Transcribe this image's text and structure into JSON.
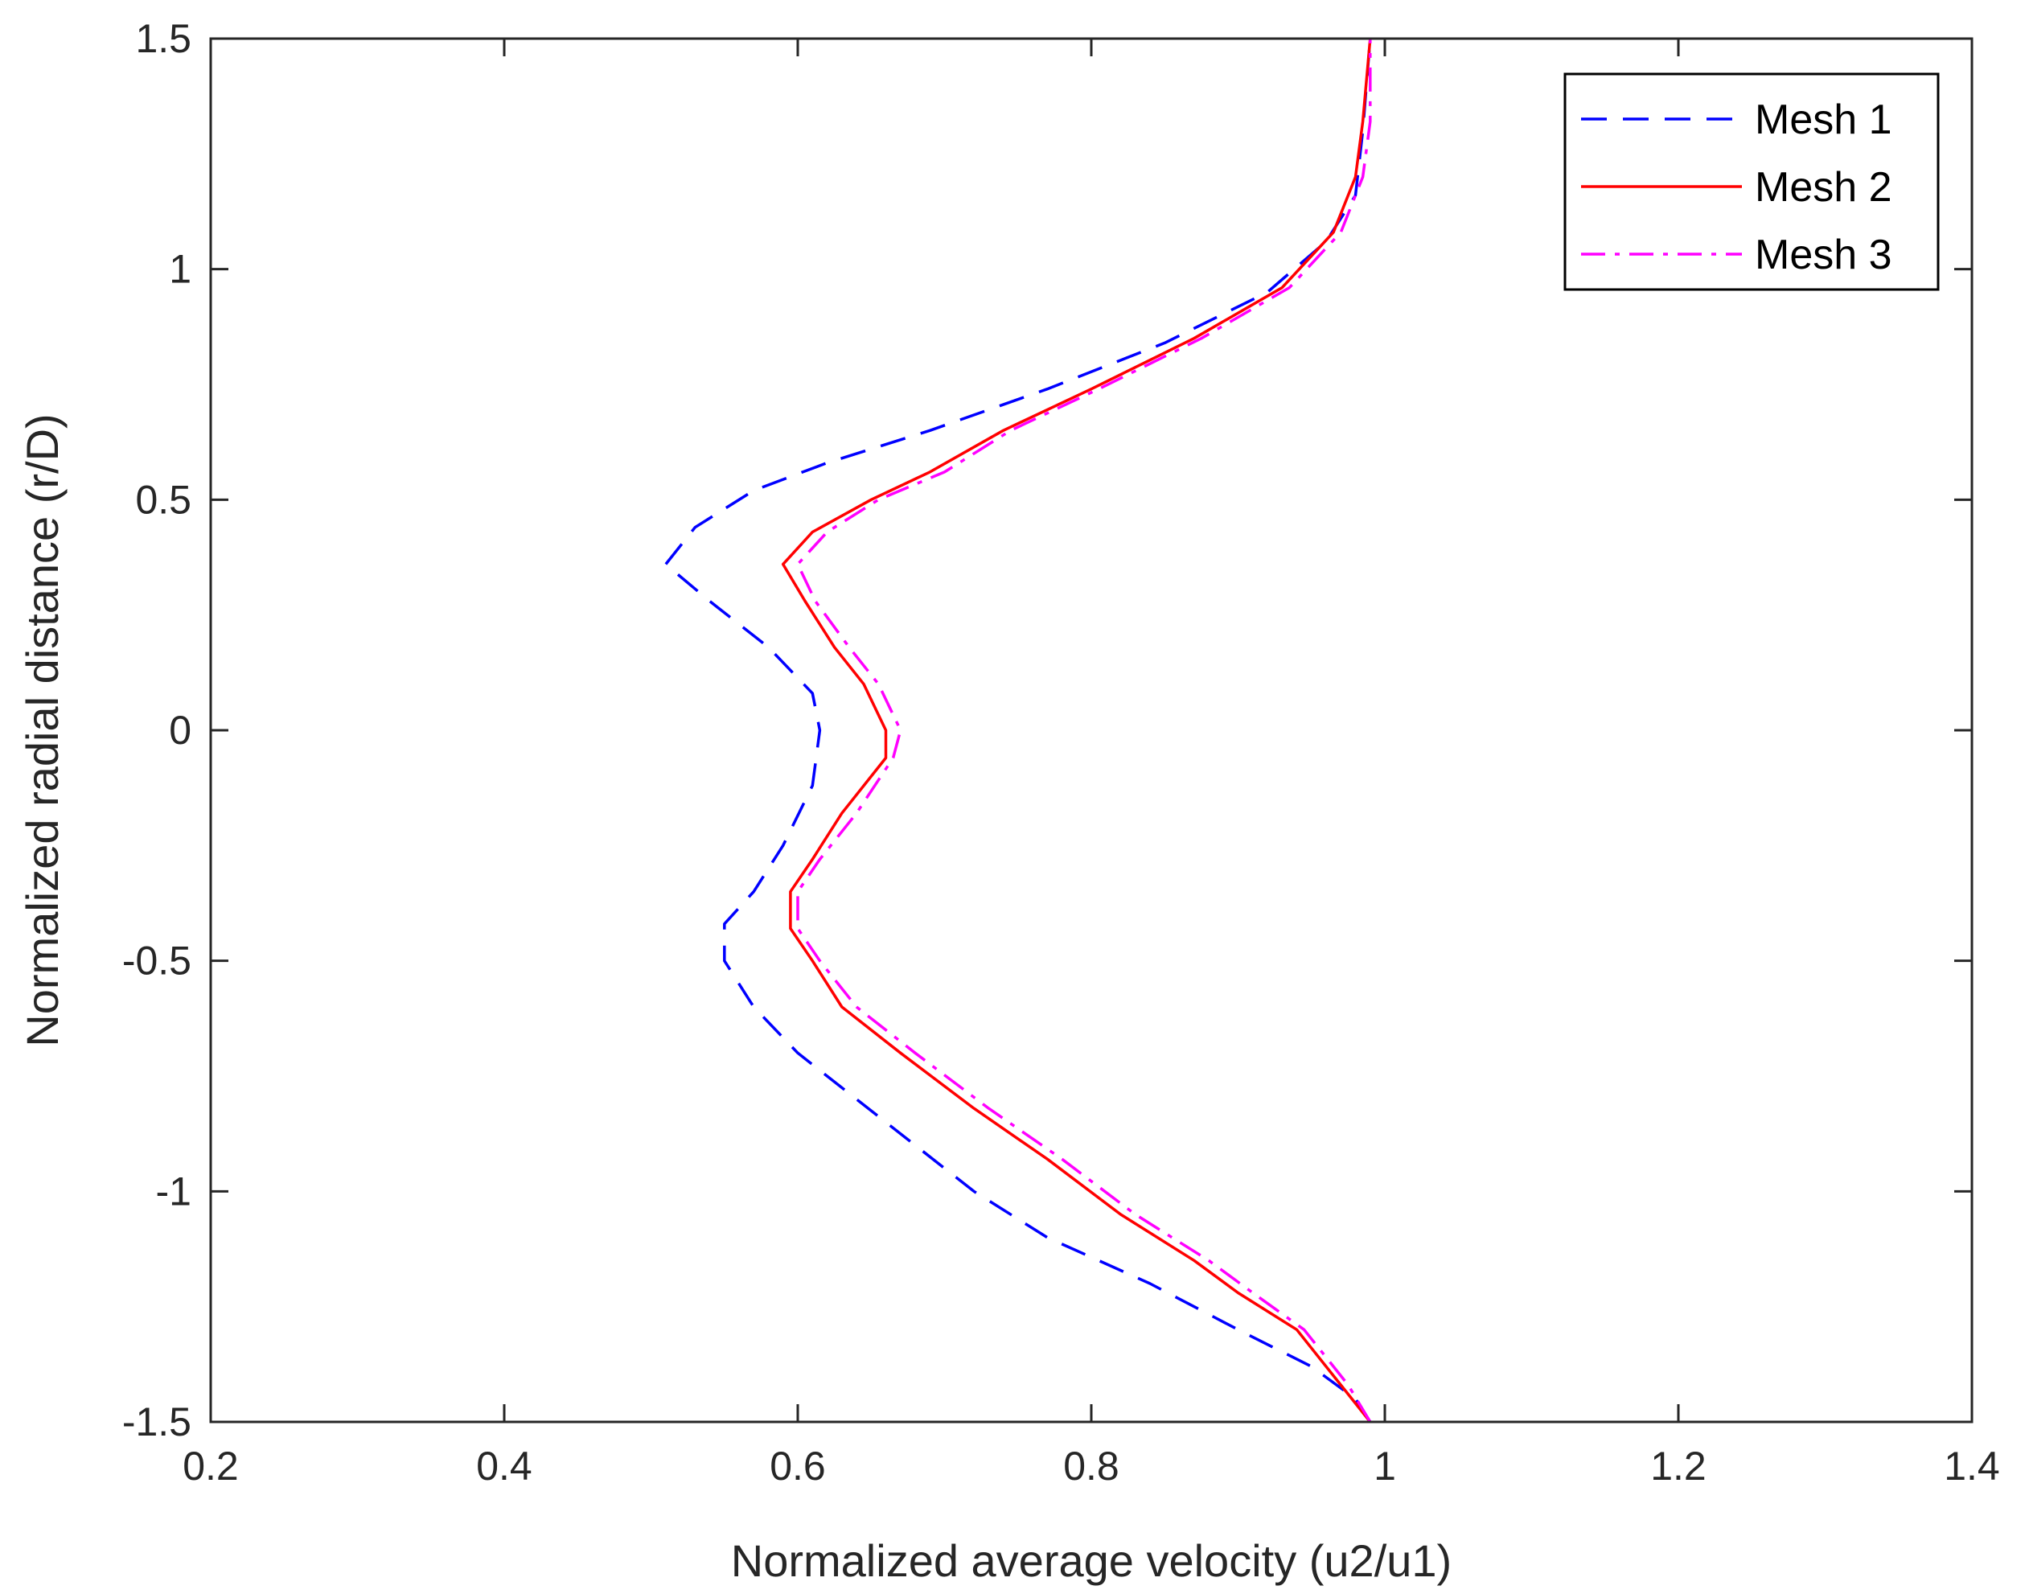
{
  "chart_data": {
    "type": "line",
    "title": "",
    "xlabel": "Normalized average velocity (u2/u1)",
    "ylabel": "Normalized radial distance (r/D)",
    "xlim": [
      0.2,
      1.4
    ],
    "ylim": [
      -1.5,
      1.5
    ],
    "xticks": [
      0.2,
      0.4,
      0.6,
      0.8,
      1.0,
      1.2,
      1.4
    ],
    "xtick_labels": [
      "0.2",
      "0.4",
      "0.6",
      "0.8",
      "1",
      "1.2",
      "1.4"
    ],
    "yticks": [
      -1.5,
      -1.0,
      -0.5,
      0.0,
      0.5,
      1.0,
      1.5
    ],
    "ytick_labels": [
      "-1.5",
      "-1",
      "-0.5",
      "0",
      "0.5",
      "1",
      "1.5"
    ],
    "grid": false,
    "legend_position": "top-right",
    "series": [
      {
        "name": "Mesh 1",
        "color": "#0000ff",
        "dash": "dashed",
        "points": [
          [
            0.99,
            -1.5
          ],
          [
            0.98,
            -1.45
          ],
          [
            0.95,
            -1.38
          ],
          [
            0.9,
            -1.3
          ],
          [
            0.84,
            -1.2
          ],
          [
            0.77,
            -1.1
          ],
          [
            0.72,
            -1.0
          ],
          [
            0.68,
            -0.9
          ],
          [
            0.64,
            -0.8
          ],
          [
            0.6,
            -0.7
          ],
          [
            0.57,
            -0.6
          ],
          [
            0.55,
            -0.5
          ],
          [
            0.55,
            -0.42
          ],
          [
            0.57,
            -0.35
          ],
          [
            0.59,
            -0.25
          ],
          [
            0.61,
            -0.12
          ],
          [
            0.615,
            0.0
          ],
          [
            0.61,
            0.08
          ],
          [
            0.58,
            0.18
          ],
          [
            0.54,
            0.28
          ],
          [
            0.51,
            0.36
          ],
          [
            0.53,
            0.44
          ],
          [
            0.57,
            0.52
          ],
          [
            0.62,
            0.58
          ],
          [
            0.69,
            0.65
          ],
          [
            0.77,
            0.74
          ],
          [
            0.85,
            0.84
          ],
          [
            0.92,
            0.95
          ],
          [
            0.96,
            1.06
          ],
          [
            0.98,
            1.16
          ],
          [
            0.985,
            1.3
          ],
          [
            0.99,
            1.5
          ]
        ]
      },
      {
        "name": "Mesh 2",
        "color": "#ff0000",
        "dash": "solid",
        "points": [
          [
            0.99,
            -1.5
          ],
          [
            0.97,
            -1.42
          ],
          [
            0.94,
            -1.3
          ],
          [
            0.9,
            -1.22
          ],
          [
            0.87,
            -1.15
          ],
          [
            0.82,
            -1.05
          ],
          [
            0.77,
            -0.93
          ],
          [
            0.72,
            -0.82
          ],
          [
            0.67,
            -0.7
          ],
          [
            0.63,
            -0.6
          ],
          [
            0.61,
            -0.5
          ],
          [
            0.595,
            -0.43
          ],
          [
            0.595,
            -0.35
          ],
          [
            0.61,
            -0.28
          ],
          [
            0.63,
            -0.18
          ],
          [
            0.66,
            -0.06
          ],
          [
            0.66,
            0.0
          ],
          [
            0.645,
            0.1
          ],
          [
            0.625,
            0.18
          ],
          [
            0.605,
            0.28
          ],
          [
            0.59,
            0.36
          ],
          [
            0.61,
            0.43
          ],
          [
            0.65,
            0.5
          ],
          [
            0.69,
            0.56
          ],
          [
            0.74,
            0.65
          ],
          [
            0.8,
            0.74
          ],
          [
            0.87,
            0.85
          ],
          [
            0.93,
            0.96
          ],
          [
            0.965,
            1.08
          ],
          [
            0.98,
            1.2
          ],
          [
            0.985,
            1.32
          ],
          [
            0.99,
            1.5
          ]
        ]
      },
      {
        "name": "Mesh 3",
        "color": "#ff00ff",
        "dash": "dashdot",
        "points": [
          [
            0.99,
            -1.5
          ],
          [
            0.975,
            -1.42
          ],
          [
            0.945,
            -1.3
          ],
          [
            0.91,
            -1.22
          ],
          [
            0.88,
            -1.15
          ],
          [
            0.83,
            -1.05
          ],
          [
            0.78,
            -0.93
          ],
          [
            0.73,
            -0.82
          ],
          [
            0.68,
            -0.7
          ],
          [
            0.64,
            -0.6
          ],
          [
            0.615,
            -0.5
          ],
          [
            0.6,
            -0.43
          ],
          [
            0.6,
            -0.35
          ],
          [
            0.615,
            -0.28
          ],
          [
            0.64,
            -0.18
          ],
          [
            0.665,
            -0.06
          ],
          [
            0.67,
            0.0
          ],
          [
            0.655,
            0.1
          ],
          [
            0.635,
            0.18
          ],
          [
            0.612,
            0.28
          ],
          [
            0.6,
            0.36
          ],
          [
            0.62,
            0.43
          ],
          [
            0.655,
            0.5
          ],
          [
            0.7,
            0.56
          ],
          [
            0.745,
            0.65
          ],
          [
            0.805,
            0.74
          ],
          [
            0.875,
            0.85
          ],
          [
            0.935,
            0.96
          ],
          [
            0.97,
            1.08
          ],
          [
            0.985,
            1.2
          ],
          [
            0.99,
            1.32
          ],
          [
            0.99,
            1.5
          ]
        ]
      }
    ]
  }
}
